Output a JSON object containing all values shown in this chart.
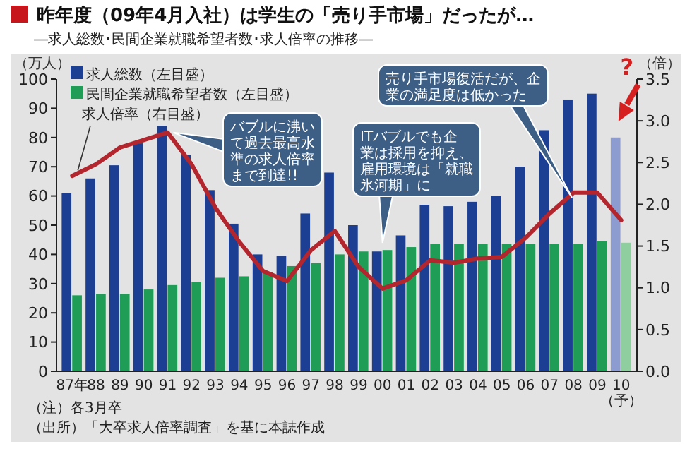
{
  "chart_data": {
    "type": "bar",
    "title": "昨年度（09年4月入社）は学生の「売り手市場」だったが…",
    "subtitle": "―求人総数･民間企業就職希望者数･求人倍率の推移―",
    "ylabel": "（万人）",
    "y2label": "（倍）",
    "categories": [
      "87年",
      "88",
      "89",
      "90",
      "91",
      "92",
      "93",
      "94",
      "95",
      "96",
      "97",
      "98",
      "99",
      "00",
      "01",
      "02",
      "03",
      "04",
      "05",
      "06",
      "07",
      "08",
      "09",
      "10（予）"
    ],
    "series": [
      {
        "name": "求人総数（左目盛）",
        "color": "#1c3f94",
        "colors": [
          "#1c3f94",
          "#1c3f94",
          "#1c3f94",
          "#1c3f94",
          "#1c3f94",
          "#1c3f94",
          "#1c3f94",
          "#1c3f94",
          "#1c3f94",
          "#1c3f94",
          "#1c3f94",
          "#1c3f94",
          "#1c3f94",
          "#1c3f94",
          "#1c3f94",
          "#1c3f94",
          "#1c3f94",
          "#1c3f94",
          "#1c3f94",
          "#1c3f94",
          "#1c3f94",
          "#1c3f94",
          "#1c3f94",
          "#8c9bd0"
        ],
        "values": [
          61,
          66,
          70.5,
          78,
          84,
          74,
          62,
          50.5,
          40,
          39.5,
          54,
          68,
          50,
          41,
          46.5,
          57,
          56.5,
          58,
          60,
          70,
          82.5,
          93,
          95,
          80
        ]
      },
      {
        "name": "民間企業就職希望者数（左目盛）",
        "color": "#1f9c55",
        "colors": [
          "#1f9c55",
          "#1f9c55",
          "#1f9c55",
          "#1f9c55",
          "#1f9c55",
          "#1f9c55",
          "#1f9c55",
          "#1f9c55",
          "#1f9c55",
          "#1f9c55",
          "#1f9c55",
          "#1f9c55",
          "#1f9c55",
          "#1f9c55",
          "#1f9c55",
          "#1f9c55",
          "#1f9c55",
          "#1f9c55",
          "#1f9c55",
          "#1f9c55",
          "#1f9c55",
          "#1f9c55",
          "#1f9c55",
          "#8fce9f"
        ],
        "values": [
          26,
          26.5,
          26.5,
          28,
          29.5,
          30.5,
          32,
          32.5,
          34,
          36,
          37,
          40,
          41,
          41.5,
          42.5,
          43.5,
          43.5,
          43.5,
          43.5,
          43.5,
          43.5,
          43.5,
          44.5,
          44
        ]
      },
      {
        "name": "求人倍率（右目盛）",
        "type": "line",
        "axis": "y2",
        "color": "#b3262e",
        "values": [
          2.34,
          2.48,
          2.68,
          2.77,
          2.86,
          2.48,
          1.96,
          1.55,
          1.2,
          1.08,
          1.45,
          1.68,
          1.25,
          0.99,
          1.09,
          1.33,
          1.3,
          1.35,
          1.37,
          1.6,
          1.89,
          2.14,
          2.14,
          1.81
        ]
      }
    ],
    "ylim": [
      0,
      100
    ],
    "yticks": [
      0,
      10,
      20,
      30,
      40,
      50,
      60,
      70,
      80,
      90,
      100
    ],
    "y2lim": [
      0,
      3.5
    ],
    "y2ticks": [
      {
        "value": 0,
        "label": "0.0"
      },
      {
        "value": 0.5,
        "label": "0.5"
      },
      {
        "value": 1,
        "label": "1.0"
      },
      {
        "value": 1.5,
        "label": "1.5"
      },
      {
        "value": 2,
        "label": "2.0"
      },
      {
        "value": 2.5,
        "label": "2.5"
      },
      {
        "value": 3,
        "label": "3.0"
      },
      {
        "value": 3.5,
        "label": "3.5"
      }
    ],
    "legend": "top left",
    "grid": false,
    "annotations": [
      "バブルに沸いて過去最高水準の求人倍率まで到達!!",
      "ITバブルでも企業は採用を抑え、雇用環境は「就職氷河期」に",
      "売り手市場復活だが、企業の満足度は低かった",
      "?",
      "（注）各3月卒",
      "（出所）「大卒求人倍率調査」を基に本誌作成"
    ]
  }
}
